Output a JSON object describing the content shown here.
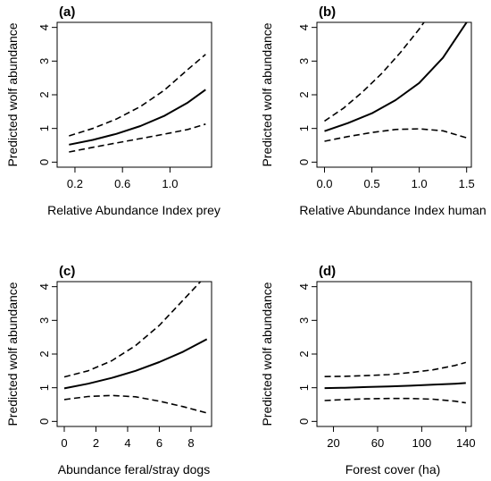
{
  "chart_data": [
    {
      "type": "line",
      "panel_label": "(a)",
      "xlabel": "Relative Abundance Index prey",
      "ylabel": "Predicted wolf abundance",
      "xticks": [
        "0.2",
        "0.6",
        "1.0"
      ],
      "yticks": [
        "0",
        "1",
        "2",
        "3",
        "4"
      ],
      "xlim": [
        0.05,
        1.35
      ],
      "ylim": [
        -0.15,
        4.15
      ],
      "series": [
        {
          "role": "upper",
          "style": "dashed",
          "x": [
            0.15,
            0.35,
            0.55,
            0.75,
            0.95,
            1.15,
            1.3
          ],
          "y": [
            0.78,
            1.0,
            1.28,
            1.65,
            2.13,
            2.75,
            3.2
          ]
        },
        {
          "role": "fit",
          "style": "solid",
          "x": [
            0.15,
            0.35,
            0.55,
            0.75,
            0.95,
            1.15,
            1.3
          ],
          "y": [
            0.52,
            0.66,
            0.84,
            1.07,
            1.37,
            1.77,
            2.15
          ]
        },
        {
          "role": "lower",
          "style": "dashed",
          "x": [
            0.15,
            0.35,
            0.55,
            0.75,
            0.95,
            1.15,
            1.3
          ],
          "y": [
            0.3,
            0.44,
            0.57,
            0.7,
            0.83,
            0.97,
            1.13
          ]
        }
      ]
    },
    {
      "type": "line",
      "panel_label": "(b)",
      "xlabel": "Relative Abundance Index human",
      "ylabel": "Predicted wolf abundance",
      "xticks": [
        "0.0",
        "0.5",
        "1.0",
        "1.5"
      ],
      "yticks": [
        "0",
        "1",
        "2",
        "3",
        "4"
      ],
      "xlim": [
        -0.08,
        1.55
      ],
      "ylim": [
        -0.15,
        4.15
      ],
      "series": [
        {
          "role": "upper",
          "style": "dashed",
          "x": [
            0.0,
            0.2,
            0.4,
            0.6,
            0.8,
            1.0,
            1.05
          ],
          "y": [
            1.22,
            1.6,
            2.08,
            2.62,
            3.25,
            3.95,
            4.15
          ]
        },
        {
          "role": "fit",
          "style": "solid",
          "x": [
            0.0,
            0.25,
            0.5,
            0.75,
            1.0,
            1.25,
            1.5
          ],
          "y": [
            0.92,
            1.16,
            1.45,
            1.84,
            2.35,
            3.1,
            4.15
          ]
        },
        {
          "role": "lower",
          "style": "dashed",
          "x": [
            0.0,
            0.25,
            0.5,
            0.75,
            1.0,
            1.25,
            1.5
          ],
          "y": [
            0.62,
            0.76,
            0.88,
            0.97,
            0.99,
            0.93,
            0.72
          ]
        }
      ]
    },
    {
      "type": "line",
      "panel_label": "(c)",
      "xlabel": "Abundance feral/stray dogs",
      "ylabel": "Predicted wolf abundance",
      "xticks": [
        "0",
        "2",
        "4",
        "6",
        "8"
      ],
      "yticks": [
        "0",
        "1",
        "2",
        "3",
        "4"
      ],
      "xlim": [
        -0.45,
        9.3
      ],
      "ylim": [
        -0.15,
        4.15
      ],
      "series": [
        {
          "role": "upper",
          "style": "dashed",
          "x": [
            0,
            1.5,
            3,
            4.5,
            6,
            7.5,
            8.6
          ],
          "y": [
            1.32,
            1.5,
            1.8,
            2.25,
            2.85,
            3.6,
            4.15
          ]
        },
        {
          "role": "fit",
          "style": "solid",
          "x": [
            0,
            1.5,
            3,
            4.5,
            6,
            7.5,
            9
          ],
          "y": [
            0.98,
            1.12,
            1.29,
            1.5,
            1.76,
            2.07,
            2.44
          ]
        },
        {
          "role": "lower",
          "style": "dashed",
          "x": [
            0,
            1.5,
            3,
            4.5,
            6,
            7.5,
            9
          ],
          "y": [
            0.65,
            0.74,
            0.77,
            0.73,
            0.6,
            0.44,
            0.25
          ]
        }
      ]
    },
    {
      "type": "line",
      "panel_label": "(d)",
      "xlabel": "Forest cover (ha)",
      "ylabel": "Predicted wolf abundance",
      "xticks": [
        "20",
        "60",
        "100",
        "140"
      ],
      "yticks": [
        "0",
        "1",
        "2",
        "3",
        "4"
      ],
      "xlim": [
        5,
        145
      ],
      "ylim": [
        -0.15,
        4.15
      ],
      "series": [
        {
          "role": "upper",
          "style": "dashed",
          "x": [
            12,
            30,
            50,
            70,
            90,
            110,
            130,
            140
          ],
          "y": [
            1.33,
            1.34,
            1.36,
            1.39,
            1.45,
            1.53,
            1.66,
            1.75
          ]
        },
        {
          "role": "fit",
          "style": "solid",
          "x": [
            12,
            30,
            50,
            70,
            90,
            110,
            130,
            140
          ],
          "y": [
            0.99,
            1.0,
            1.02,
            1.04,
            1.06,
            1.09,
            1.12,
            1.14
          ]
        },
        {
          "role": "lower",
          "style": "dashed",
          "x": [
            12,
            30,
            50,
            70,
            90,
            110,
            130,
            140
          ],
          "y": [
            0.62,
            0.65,
            0.67,
            0.68,
            0.68,
            0.66,
            0.6,
            0.55
          ]
        }
      ]
    }
  ]
}
